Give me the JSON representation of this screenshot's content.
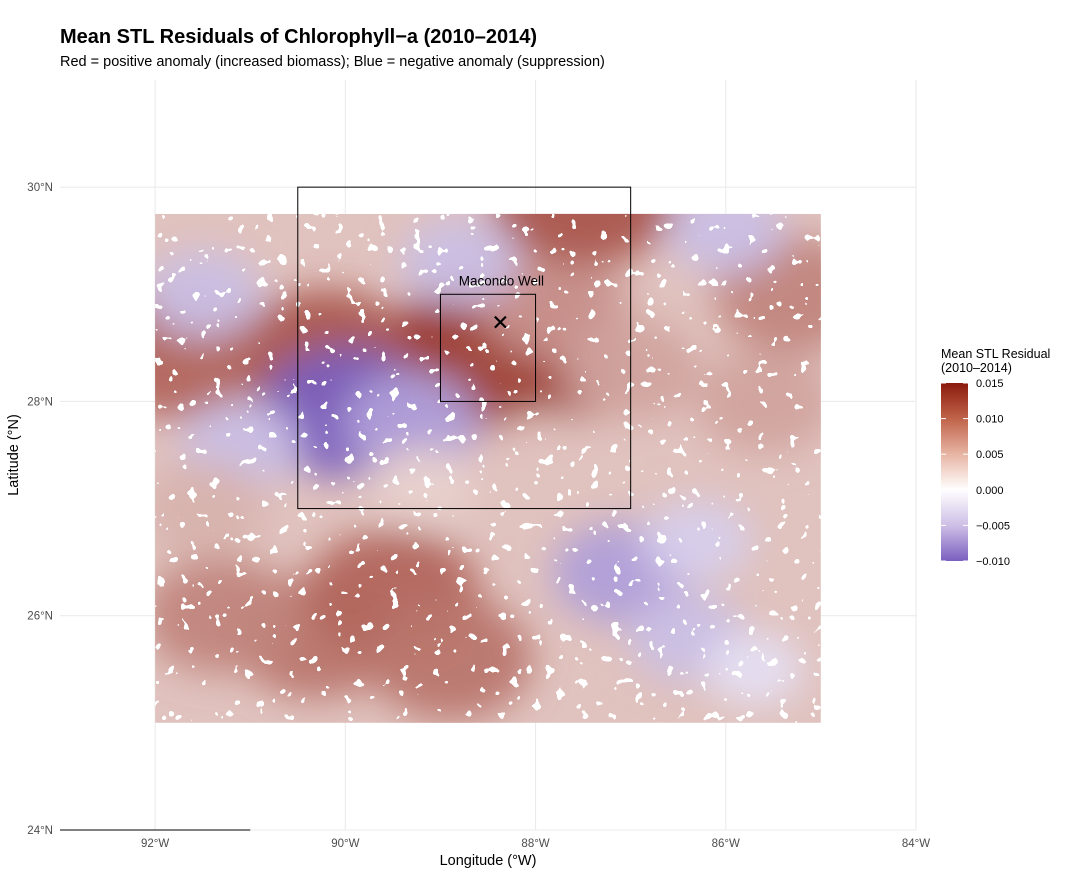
{
  "title": "Mean STL Residuals of Chlorophyll−a (2010–2014)",
  "subtitle": "Red = positive anomaly (increased biomass); Blue = negative anomaly (suppression)",
  "chart_data": {
    "type": "heatmap",
    "xlabel": "Longitude (°W)",
    "ylabel": "Latitude (°N)",
    "xlim": [
      -93,
      -84
    ],
    "ylim": [
      24,
      31
    ],
    "x_ticks": [
      -92,
      -90,
      -88,
      -86,
      -84
    ],
    "x_tick_labels": [
      "92°W",
      "90°W",
      "88°W",
      "86°W",
      "84°W"
    ],
    "y_ticks": [
      24,
      26,
      28,
      30
    ],
    "y_tick_labels": [
      "24°N",
      "26°N",
      "28°N",
      "30°N"
    ],
    "grid": true,
    "data_extent": {
      "lon": [
        -92,
        -85
      ],
      "lat": [
        25,
        29.75
      ]
    },
    "color_scale": {
      "low": -0.01,
      "mid": 0.0,
      "high": 0.015,
      "low_color": "#7b5fbf",
      "mid_color": "#ffffff",
      "high_color": "#8b1a0c"
    },
    "anomaly_regions": [
      {
        "lon": -88.4,
        "lat": 28.5,
        "value": 0.014
      },
      {
        "lon": -88.1,
        "lat": 28.35,
        "value": 0.012
      },
      {
        "lon": -90.2,
        "lat": 28.4,
        "value": 0.011
      },
      {
        "lon": -91.8,
        "lat": 28.45,
        "value": 0.01
      },
      {
        "lon": -87.8,
        "lat": 28.9,
        "value": 0.007
      },
      {
        "lon": -87.5,
        "lat": 29.9,
        "value": 0.011
      },
      {
        "lon": -87.0,
        "lat": 28.3,
        "value": 0.006
      },
      {
        "lon": -85.6,
        "lat": 28.0,
        "value": 0.006
      },
      {
        "lon": -85.3,
        "lat": 29.0,
        "value": 0.008
      },
      {
        "lon": -90.3,
        "lat": 25.8,
        "value": 0.009
      },
      {
        "lon": -89.5,
        "lat": 26.2,
        "value": 0.01
      },
      {
        "lon": -91.3,
        "lat": 26.0,
        "value": 0.008
      },
      {
        "lon": -88.9,
        "lat": 25.6,
        "value": 0.009
      },
      {
        "lon": -90.0,
        "lat": 27.9,
        "value": -0.01
      },
      {
        "lon": -89.3,
        "lat": 27.8,
        "value": -0.006
      },
      {
        "lon": -91.1,
        "lat": 27.6,
        "value": -0.004
      },
      {
        "lon": -91.5,
        "lat": 29.0,
        "value": -0.004
      },
      {
        "lon": -88.8,
        "lat": 29.3,
        "value": -0.004
      },
      {
        "lon": -86.0,
        "lat": 29.6,
        "value": -0.004
      },
      {
        "lon": -87.1,
        "lat": 26.4,
        "value": -0.006
      },
      {
        "lon": -86.4,
        "lat": 25.8,
        "value": -0.004
      },
      {
        "lon": -86.3,
        "lat": 26.7,
        "value": -0.003
      },
      {
        "lon": -85.7,
        "lat": 25.5,
        "value": -0.002
      },
      {
        "lon": -89.2,
        "lat": 27.2,
        "value": 0.003
      },
      {
        "lon": -91.5,
        "lat": 27.0,
        "value": 0.005
      },
      {
        "lon": -87.9,
        "lat": 27.5,
        "value": 0.004
      }
    ],
    "boxes": [
      {
        "lon": [
          -90.5,
          -87.0
        ],
        "lat": [
          27.0,
          30.0
        ]
      },
      {
        "lon": [
          -89.0,
          -88.0
        ],
        "lat": [
          28.0,
          29.0
        ]
      }
    ],
    "point": {
      "label": "Macondo Well",
      "lon": -88.37,
      "lat": 28.74,
      "marker": "x"
    },
    "legend": {
      "title_lines": [
        "Mean STL Residual",
        "(2010–2014)"
      ],
      "values": [
        0.015,
        0.01,
        0.005,
        0.0,
        -0.005,
        -0.01
      ],
      "labels": [
        "0.015",
        "0.010",
        "0.005",
        "0.000",
        "−0.005",
        "−0.010"
      ],
      "position": "right"
    }
  }
}
